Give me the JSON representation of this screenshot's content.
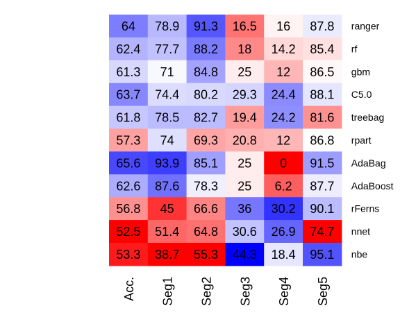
{
  "chart_data": {
    "type": "heatmap",
    "columns": [
      "Acc.",
      "Seg1",
      "Seg2",
      "Seg3",
      "Seg4",
      "Seg5"
    ],
    "rows": [
      "ranger",
      "rf",
      "gbm",
      "C5.0",
      "treebag",
      "rpart",
      "AdaBag",
      "AdaBoost",
      "rFerns",
      "nnet",
      "nbe"
    ],
    "values": [
      [
        64,
        78.9,
        91.3,
        16.5,
        16,
        87.8
      ],
      [
        62.4,
        77.7,
        88.2,
        18,
        14.2,
        85.4
      ],
      [
        61.3,
        71,
        84.8,
        25,
        12,
        86.5
      ],
      [
        63.7,
        74.4,
        80.2,
        29.3,
        24.4,
        88.1
      ],
      [
        61.8,
        78.5,
        82.7,
        19.4,
        24.2,
        81.6
      ],
      [
        57.3,
        74,
        69.3,
        20.8,
        12,
        86.8
      ],
      [
        65.6,
        93.9,
        85.1,
        25,
        0,
        91.5
      ],
      [
        62.6,
        87.6,
        78.3,
        25,
        6.2,
        87.7
      ],
      [
        56.8,
        45,
        66.6,
        36,
        30.2,
        90.1
      ],
      [
        52.5,
        51.4,
        64.8,
        30.6,
        26.9,
        74.7
      ],
      [
        53.3,
        38.7,
        55.3,
        44.3,
        18.4,
        95.1
      ]
    ],
    "color_scale": {
      "low": "#ff0000",
      "mid": "#ffffff",
      "high": "#0000ff",
      "scaling": "per-column"
    },
    "grid": false,
    "legend": "none"
  }
}
